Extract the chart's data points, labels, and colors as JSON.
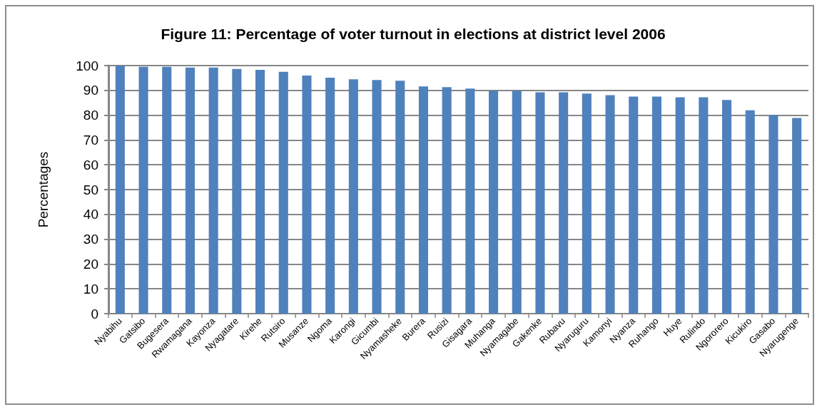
{
  "chart_data": {
    "type": "bar",
    "title": "Figure 11: Percentage of voter turnout in elections at district level 2006",
    "ylabel": "Percentages",
    "categories": [
      "Nyabihu",
      "Gatsibo",
      "Bugesera",
      "Rwamagana",
      "Kayonza",
      "Nyagatare",
      "Kirehe",
      "Rutsiro",
      "Musanze",
      "Ngoma",
      "Karongi",
      "Gicumbi",
      "Nyamasheke",
      "Burera",
      "Rusizi",
      "Gisagara",
      "Muhanga",
      "Nyamagabe",
      "Gakenke",
      "Rubavu",
      "Nyaruguru",
      "Kamonyi",
      "Nyanza",
      "Ruhango",
      "Huye",
      "Rulindo",
      "Ngororero",
      "Kicukiro",
      "Gasabo",
      "Nyarugenge"
    ],
    "values": [
      99.9,
      99.5,
      99.5,
      99.2,
      99.2,
      98.6,
      98.3,
      97.5,
      96.0,
      95.1,
      94.5,
      94.2,
      93.9,
      91.6,
      91.3,
      90.7,
      89.9,
      89.9,
      89.2,
      89.2,
      88.7,
      88.1,
      87.5,
      87.5,
      87.2,
      87.2,
      86.1,
      82.0,
      80.0,
      78.9
    ],
    "color": "#4f81bd",
    "ylim": [
      0,
      100
    ],
    "yticks": [
      0,
      10,
      20,
      30,
      40,
      50,
      60,
      70,
      80,
      90,
      100
    ],
    "grid": "y"
  }
}
